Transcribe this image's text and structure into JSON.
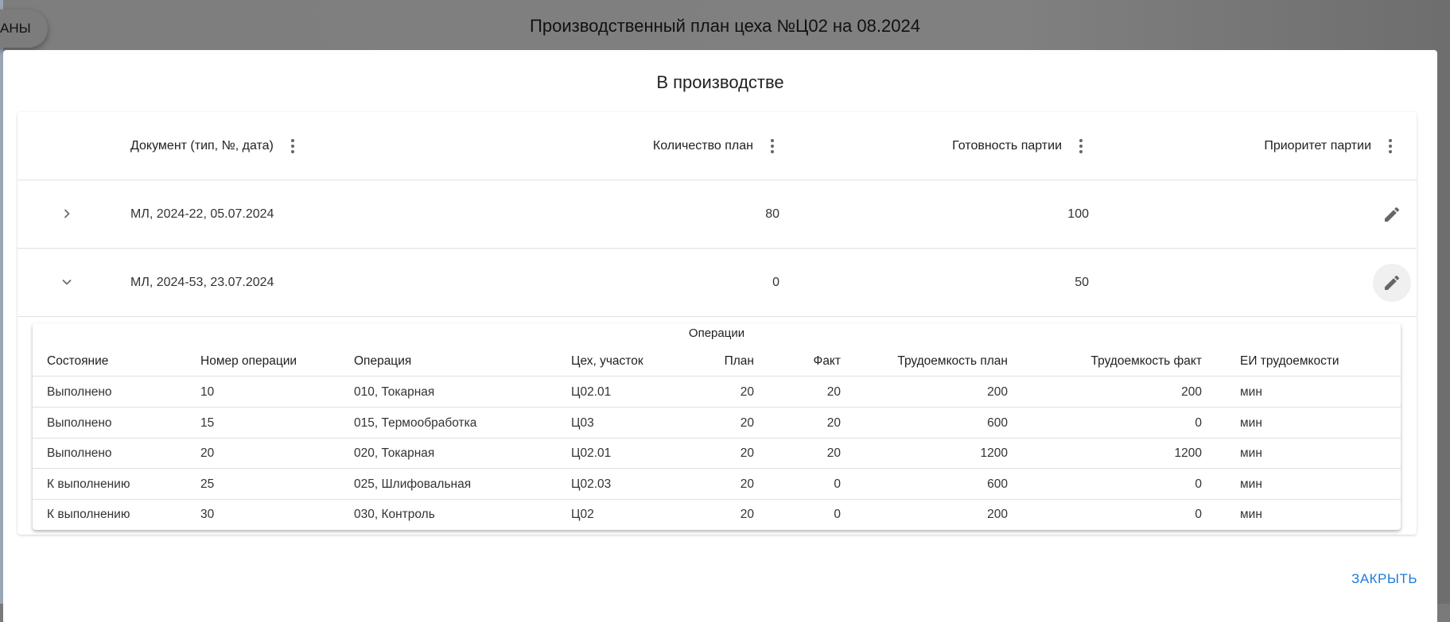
{
  "background": {
    "chip_label": "АНЫ",
    "page_title": "Производственный план цеха №Ц02 на 08.2024"
  },
  "dialog": {
    "title": "В производстве",
    "columns": [
      "Документ (тип, №, дата)",
      "Количество план",
      "Готовность партии",
      "Приоритет партии"
    ],
    "rows": [
      {
        "document": "МЛ, 2024-22, 05.07.2024",
        "qty_plan": "80",
        "readiness": "100",
        "priority": "",
        "expanded": false
      },
      {
        "document": "МЛ, 2024-53, 23.07.2024",
        "qty_plan": "0",
        "readiness": "50",
        "priority": "",
        "expanded": true
      }
    ],
    "operations": {
      "title": "Операции",
      "columns": [
        "Состояние",
        "Номер операции",
        "Операция",
        "Цех, участок",
        "План",
        "Факт",
        "Трудоемкость план",
        "Трудоемкость факт",
        "ЕИ трудоемкости"
      ],
      "rows": [
        [
          "Выполнено",
          "10",
          "010, Токарная",
          "Ц02.01",
          "20",
          "20",
          "200",
          "200",
          "мин"
        ],
        [
          "Выполнено",
          "15",
          "015, Термообработка",
          "Ц03",
          "20",
          "20",
          "600",
          "0",
          "мин"
        ],
        [
          "Выполнено",
          "20",
          "020, Токарная",
          "Ц02.01",
          "20",
          "20",
          "1200",
          "1200",
          "мин"
        ],
        [
          "К выполнению",
          "25",
          "025, Шлифовальная",
          "Ц02.03",
          "20",
          "0",
          "600",
          "0",
          "мин"
        ],
        [
          "К выполнению",
          "30",
          "030, Контроль",
          "Ц02",
          "20",
          "0",
          "200",
          "0",
          "мин"
        ]
      ]
    },
    "close_label": "ЗАКРЫТЬ",
    "accent_color": "#1e7bd8"
  }
}
